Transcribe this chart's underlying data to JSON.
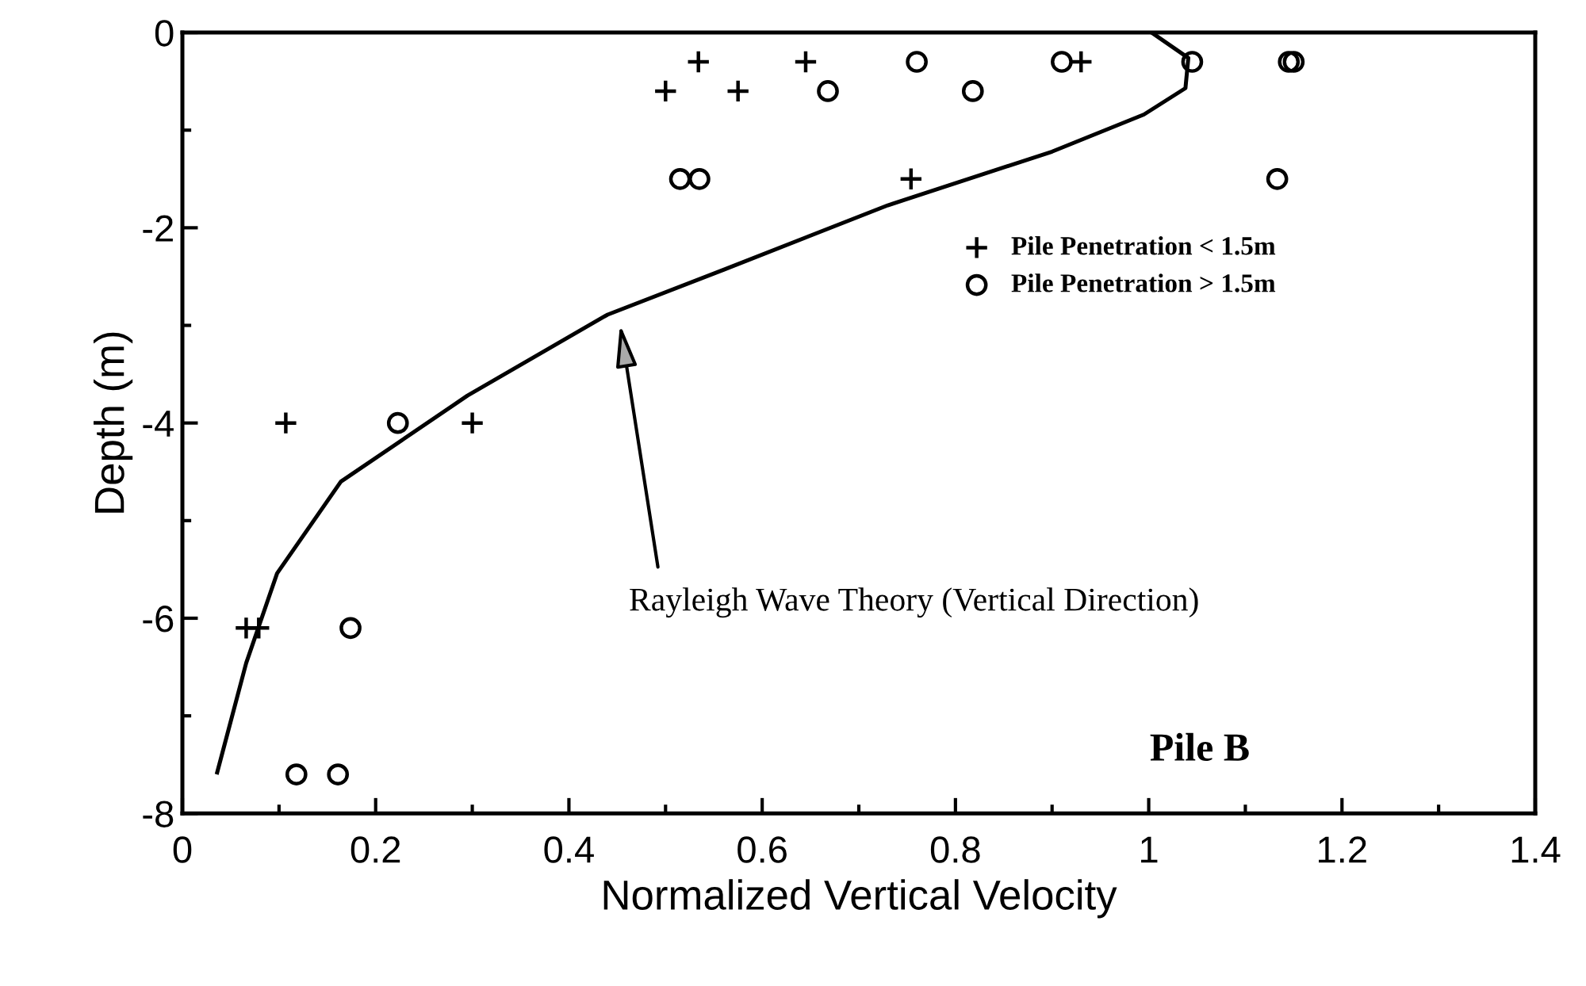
{
  "chart_data": {
    "type": "scatter",
    "xlabel": "Normalized Vertical Velocity",
    "ylabel": "Depth (m)",
    "xlim": [
      0,
      1.4
    ],
    "ylim": [
      -8,
      0
    ],
    "xticks": [
      0,
      0.2,
      0.4,
      0.6,
      0.8,
      1,
      1.2,
      1.4
    ],
    "yticks": [
      -8,
      -6,
      -4,
      -2,
      0
    ],
    "grid": false,
    "legend": "right",
    "series": [
      {
        "name": "Pile Penetration < 1.5m",
        "marker": "cross",
        "color": "#000000",
        "x": [
          0.534,
          0.645,
          0.93,
          0.5,
          0.575,
          0.754,
          0.107,
          0.3,
          0.066,
          0.079
        ],
        "values": [
          -0.3,
          -0.3,
          -0.3,
          -0.6,
          -0.6,
          -1.5,
          -4,
          -4,
          -6.1,
          -6.1
        ]
      },
      {
        "name": "Pile Penetration > 1.5m",
        "marker": "circle",
        "color": "#000000",
        "x": [
          0.76,
          0.91,
          1.045,
          1.145,
          1.15,
          0.668,
          0.818,
          0.515,
          0.535,
          1.133,
          0.223,
          0.174,
          0.118,
          0.161
        ],
        "values": [
          -0.3,
          -0.3,
          -0.3,
          -0.3,
          -0.3,
          -0.6,
          -0.6,
          -1.5,
          -1.5,
          -1.5,
          -4,
          -6.1,
          -7.6,
          -7.6
        ]
      },
      {
        "type": "line",
        "marker": "none",
        "color": "#000000",
        "x": [
          1.003,
          1.041,
          1.038,
          0.995,
          0.9,
          0.73,
          0.56,
          0.44,
          0.295,
          0.164,
          0.098,
          0.066,
          0.036
        ],
        "values": [
          0,
          -0.26,
          -0.57,
          -0.84,
          -1.22,
          -1.77,
          -2.43,
          -2.89,
          -3.72,
          -4.6,
          -5.54,
          -6.46,
          -7.58
        ]
      }
    ],
    "annotations": [
      "Rayleigh Wave Theory (Vertical Direction)",
      "Pile B"
    ]
  }
}
